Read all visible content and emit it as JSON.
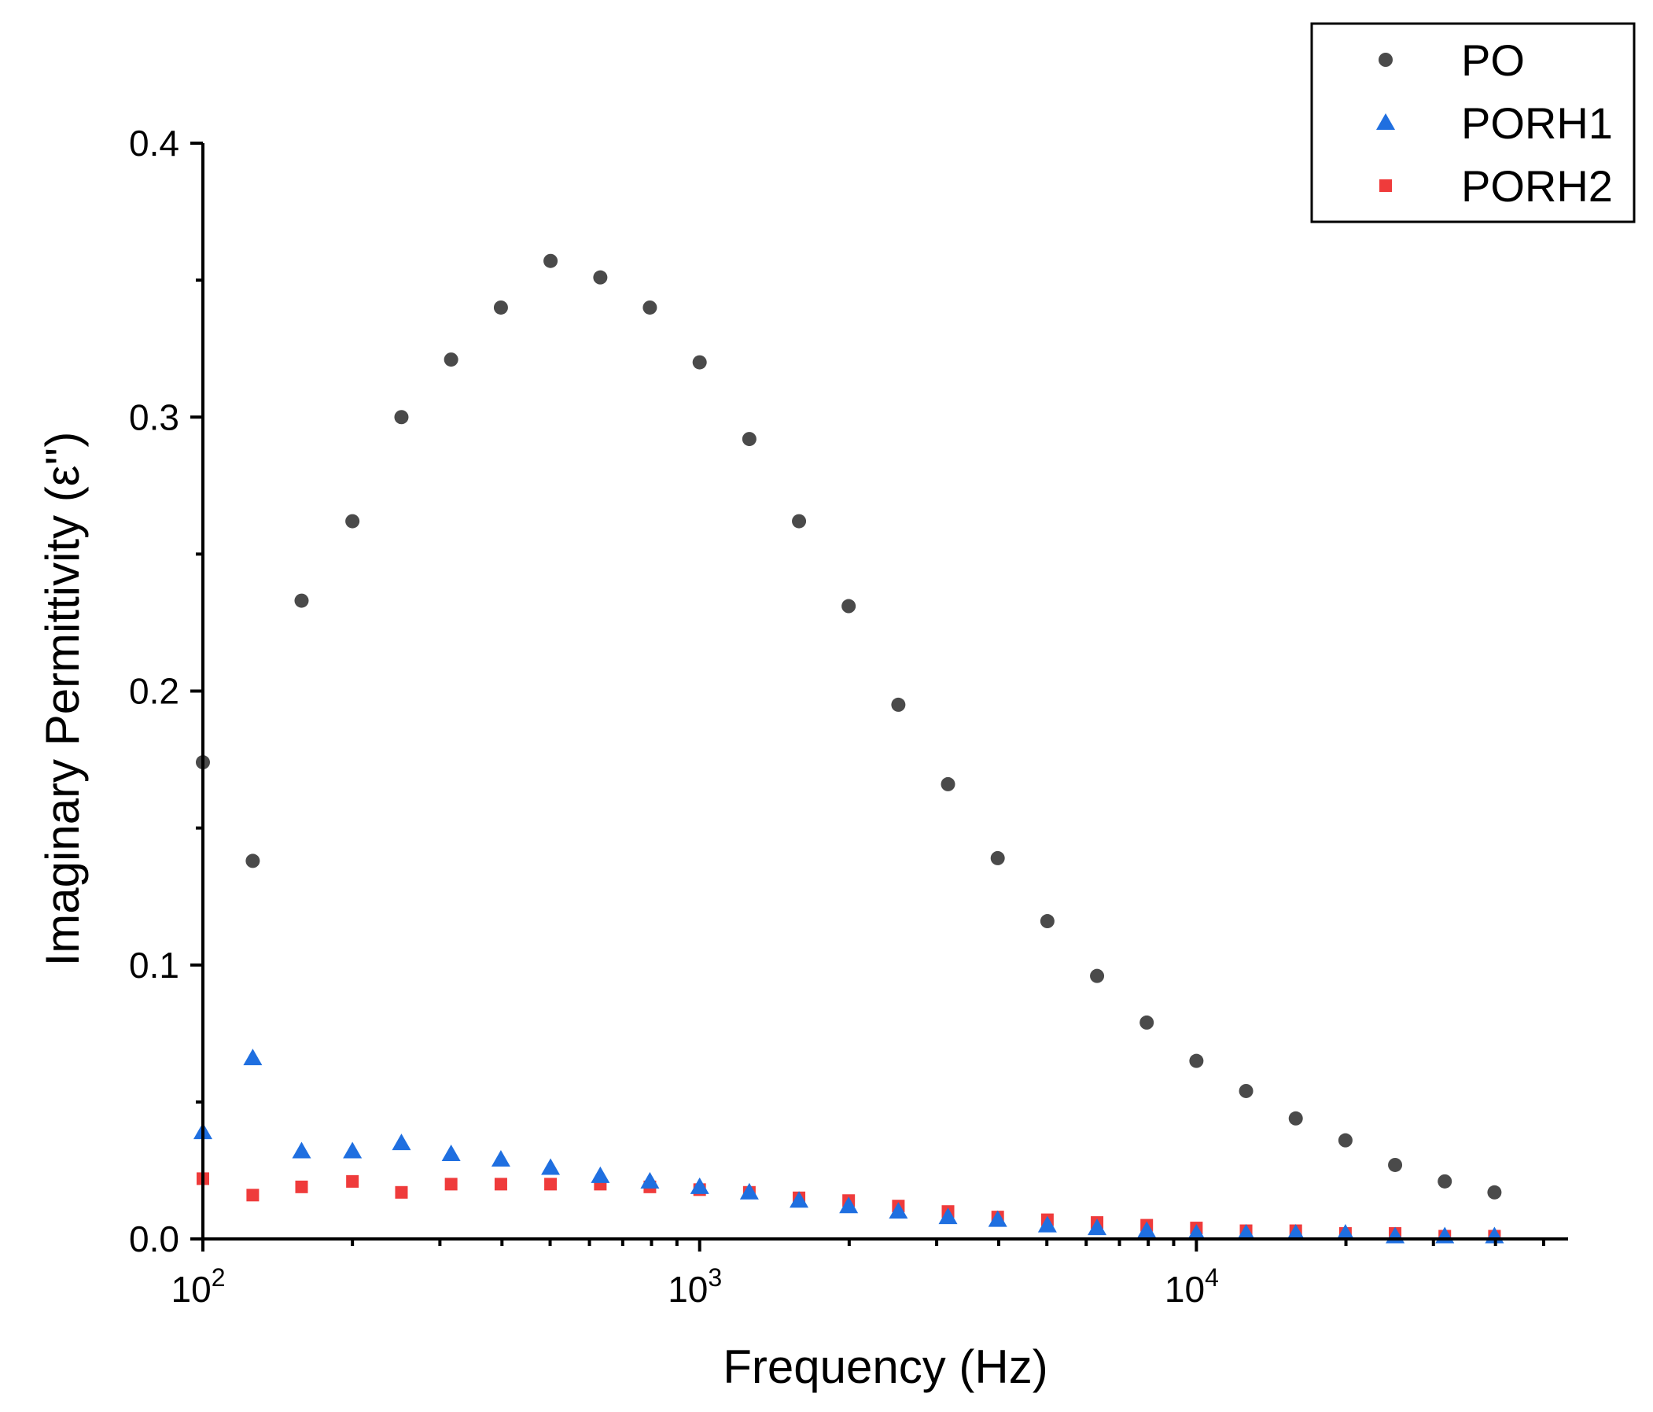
{
  "chart_data": {
    "type": "scatter",
    "title": "",
    "xlabel": "Frequency (Hz)",
    "ylabel": "Imaginary Permittivity (ε'')",
    "xscale": "log",
    "xlim": [
      100,
      56000
    ],
    "ylim": [
      0,
      0.4
    ],
    "yticks": [
      0.0,
      0.1,
      0.2,
      0.3,
      0.4
    ],
    "ytick_labels": [
      "0.0",
      "0.1",
      "0.2",
      "0.3",
      "0.4"
    ],
    "xticks": [
      100,
      1000,
      10000
    ],
    "xtick_labels": [
      {
        "base": "10",
        "exp": "2"
      },
      {
        "base": "10",
        "exp": "3"
      },
      {
        "base": "10",
        "exp": "4"
      }
    ],
    "grid": false,
    "legend_position": "top-right",
    "x": [
      100,
      126,
      158,
      200,
      251,
      316,
      398,
      501,
      631,
      794,
      1000,
      1259,
      1585,
      1995,
      2512,
      3162,
      3981,
      5012,
      6310,
      7943,
      10000,
      12589,
      15849,
      19953,
      25119,
      31623,
      39811
    ],
    "series": [
      {
        "name": "PO",
        "marker": "circle",
        "color": "#4a4a4a",
        "values": [
          0.174,
          0.138,
          0.233,
          0.262,
          0.3,
          0.321,
          0.34,
          0.357,
          0.351,
          0.34,
          0.32,
          0.292,
          0.262,
          0.231,
          0.195,
          0.166,
          0.139,
          0.116,
          0.096,
          0.079,
          0.065,
          0.054,
          0.044,
          0.036,
          0.027,
          0.021,
          0.017
        ]
      },
      {
        "name": "PORH1",
        "marker": "triangle",
        "color": "#1f6fe0",
        "values": [
          0.039,
          0.066,
          0.032,
          0.032,
          0.035,
          0.031,
          0.029,
          0.026,
          0.023,
          0.021,
          0.019,
          0.017,
          0.014,
          0.012,
          0.01,
          0.008,
          0.007,
          0.005,
          0.004,
          0.003,
          0.002,
          0.002,
          0.002,
          0.002,
          0.001,
          0.001,
          0.001
        ]
      },
      {
        "name": "PORH2",
        "marker": "square",
        "color": "#ef3b3b",
        "values": [
          0.022,
          0.016,
          0.019,
          0.021,
          0.017,
          0.02,
          0.02,
          0.02,
          0.02,
          0.019,
          0.018,
          0.017,
          0.015,
          0.014,
          0.012,
          0.01,
          0.008,
          0.007,
          0.006,
          0.005,
          0.004,
          0.003,
          0.003,
          0.002,
          0.002,
          0.001,
          0.001
        ]
      }
    ]
  }
}
